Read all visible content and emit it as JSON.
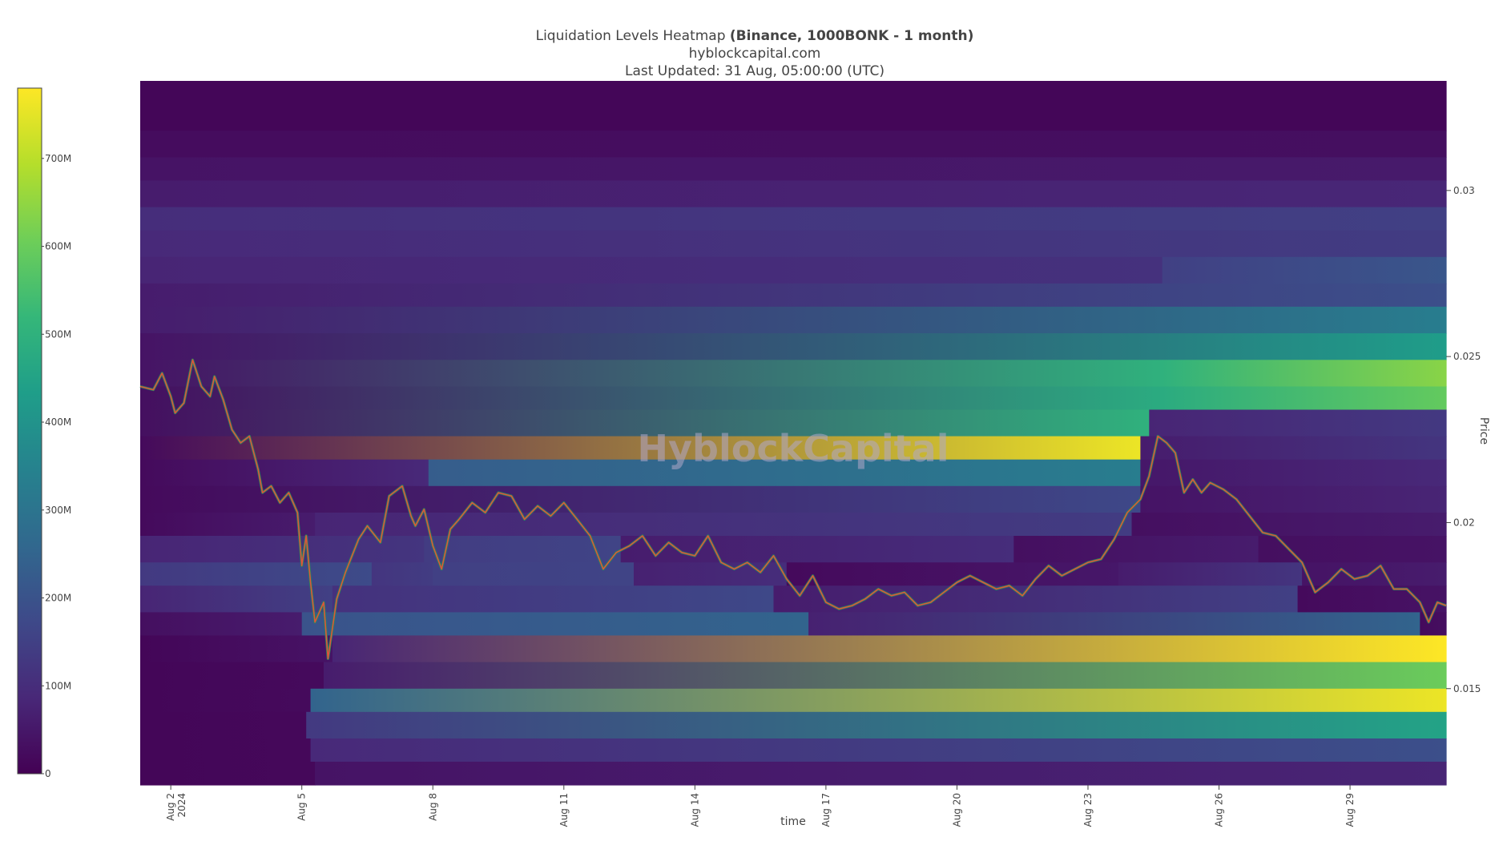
{
  "header": {
    "title_main": "Liquidation Levels Heatmap ",
    "title_bold": "(Binance, 1000BONK - 1 month)",
    "subtitle": "hyblockcapital.com",
    "updated": "Last Updated: 31 Aug, 05:00:00 (UTC)"
  },
  "watermark": "HyblockCapital",
  "colorscale": [
    "#440154",
    "#482878",
    "#3e4989",
    "#31688e",
    "#26828e",
    "#1f9e89",
    "#35b779",
    "#6ece58",
    "#b5de2b",
    "#fde725"
  ],
  "colorbar": {
    "ticks": [
      {
        "value": 0,
        "label": "0"
      },
      {
        "value": 100,
        "label": "100M"
      },
      {
        "value": 200,
        "label": "200M"
      },
      {
        "value": 300,
        "label": "300M"
      },
      {
        "value": 400,
        "label": "400M"
      },
      {
        "value": 500,
        "label": "500M"
      },
      {
        "value": 600,
        "label": "600M"
      },
      {
        "value": 700,
        "label": "700M"
      }
    ],
    "max": 780
  },
  "chart_data": {
    "type": "heatmap",
    "xlabel": "time",
    "ylabel": "Price",
    "x_range_days": [
      1.3,
      31.2
    ],
    "y_range": [
      0.0121,
      0.0333
    ],
    "x_ticks": [
      {
        "day": 2,
        "label": "Aug 2",
        "label2": "2024"
      },
      {
        "day": 5,
        "label": "Aug 5"
      },
      {
        "day": 8,
        "label": "Aug 8"
      },
      {
        "day": 11,
        "label": "Aug 11"
      },
      {
        "day": 14,
        "label": "Aug 14"
      },
      {
        "day": 17,
        "label": "Aug 17"
      },
      {
        "day": 20,
        "label": "Aug 20"
      },
      {
        "day": 23,
        "label": "Aug 23"
      },
      {
        "day": 26,
        "label": "Aug 26"
      },
      {
        "day": 29,
        "label": "Aug 29"
      }
    ],
    "y_ticks": [
      {
        "value": 0.015,
        "label": "0.015"
      },
      {
        "value": 0.02,
        "label": "0.02"
      },
      {
        "value": 0.025,
        "label": "0.025"
      },
      {
        "value": 0.03,
        "label": "0.03"
      }
    ],
    "liquidation_bands": [
      {
        "y0": 0.0318,
        "y1": 0.0333,
        "segments": [
          [
            1.3,
            31.2,
            10,
            10
          ]
        ]
      },
      {
        "y0": 0.031,
        "y1": 0.0318,
        "segments": [
          [
            1.3,
            31.2,
            25,
            30
          ]
        ]
      },
      {
        "y0": 0.0303,
        "y1": 0.031,
        "segments": [
          [
            1.3,
            31.2,
            40,
            55
          ]
        ]
      },
      {
        "y0": 0.0295,
        "y1": 0.0303,
        "segments": [
          [
            1.3,
            31.2,
            60,
            85
          ]
        ]
      },
      {
        "y0": 0.0288,
        "y1": 0.0295,
        "segments": [
          [
            1.3,
            31.2,
            100,
            150
          ]
        ]
      },
      {
        "y0": 0.028,
        "y1": 0.0288,
        "segments": [
          [
            1.3,
            31.2,
            90,
            140
          ]
        ]
      },
      {
        "y0": 0.0272,
        "y1": 0.028,
        "segments": [
          [
            1.3,
            24.7,
            80,
            110
          ],
          [
            24.7,
            31.2,
            150,
            210
          ]
        ]
      },
      {
        "y0": 0.0265,
        "y1": 0.0272,
        "segments": [
          [
            1.3,
            31.2,
            60,
            190
          ]
        ]
      },
      {
        "y0": 0.0257,
        "y1": 0.0265,
        "segments": [
          [
            1.3,
            31.2,
            60,
            330
          ]
        ]
      },
      {
        "y0": 0.0249,
        "y1": 0.0257,
        "segments": [
          [
            1.3,
            31.2,
            40,
            430
          ]
        ]
      },
      {
        "y0": 0.0241,
        "y1": 0.0249,
        "segments": [
          [
            1.3,
            24.7,
            40,
            500
          ],
          [
            24.7,
            31.2,
            500,
            640
          ]
        ]
      },
      {
        "y0": 0.0234,
        "y1": 0.0241,
        "segments": [
          [
            1.3,
            24.7,
            30,
            480
          ],
          [
            24.7,
            31.2,
            480,
            590
          ]
        ]
      },
      {
        "y0": 0.0226,
        "y1": 0.0234,
        "segments": [
          [
            1.3,
            24.4,
            30,
            500
          ],
          [
            24.4,
            31.2,
            80,
            130
          ]
        ]
      },
      {
        "y0": 0.0219,
        "y1": 0.0226,
        "segments": [
          [
            1.3,
            24.2,
            20,
            760
          ],
          [
            24.2,
            31.2,
            60,
            120
          ]
        ]
      },
      {
        "y0": 0.0211,
        "y1": 0.0219,
        "segments": [
          [
            1.3,
            7.9,
            20,
            90
          ],
          [
            7.9,
            24.2,
            230,
            330
          ],
          [
            24.2,
            31.2,
            50,
            90
          ]
        ]
      },
      {
        "y0": 0.0203,
        "y1": 0.0211,
        "segments": [
          [
            1.3,
            24.2,
            20,
            170
          ],
          [
            24.2,
            31.2,
            40,
            80
          ]
        ]
      },
      {
        "y0": 0.0196,
        "y1": 0.0203,
        "segments": [
          [
            1.3,
            5.3,
            20,
            60
          ],
          [
            5.3,
            24.0,
            80,
            140
          ],
          [
            24.0,
            31.2,
            30,
            60
          ]
        ]
      },
      {
        "y0": 0.0188,
        "y1": 0.0196,
        "segments": [
          [
            1.3,
            7.8,
            80,
            120
          ],
          [
            7.8,
            12.3,
            140,
            160
          ],
          [
            12.3,
            21.3,
            60,
            100
          ],
          [
            21.3,
            26.9,
            30,
            60
          ],
          [
            26.9,
            31.2,
            30,
            40
          ]
        ]
      },
      {
        "y0": 0.0181,
        "y1": 0.0188,
        "segments": [
          [
            1.3,
            6.6,
            130,
            180
          ],
          [
            6.6,
            8.0,
            120,
            140
          ],
          [
            8.0,
            12.6,
            150,
            160
          ],
          [
            12.6,
            16.1,
            70,
            100
          ],
          [
            16.1,
            23.7,
            20,
            50
          ],
          [
            23.7,
            27.9,
            60,
            120
          ],
          [
            27.9,
            31.2,
            40,
            60
          ]
        ]
      },
      {
        "y0": 0.0173,
        "y1": 0.0181,
        "segments": [
          [
            1.3,
            5.7,
            80,
            150
          ],
          [
            5.7,
            15.8,
            110,
            170
          ],
          [
            15.8,
            27.8,
            60,
            150
          ],
          [
            27.8,
            31.2,
            20,
            40
          ]
        ]
      },
      {
        "y0": 0.0166,
        "y1": 0.0173,
        "segments": [
          [
            1.3,
            5.0,
            30,
            60
          ],
          [
            5.0,
            16.6,
            200,
            250
          ],
          [
            16.6,
            30.6,
            70,
            250
          ],
          [
            30.6,
            31.2,
            20,
            30
          ]
        ]
      },
      {
        "y0": 0.0158,
        "y1": 0.0166,
        "segments": [
          [
            1.3,
            5.7,
            10,
            40
          ],
          [
            5.7,
            31.2,
            80,
            780
          ]
        ]
      },
      {
        "y0": 0.015,
        "y1": 0.0158,
        "segments": [
          [
            1.3,
            5.5,
            10,
            20
          ],
          [
            5.5,
            31.2,
            60,
            600
          ]
        ]
      },
      {
        "y0": 0.0143,
        "y1": 0.015,
        "segments": [
          [
            1.3,
            5.2,
            10,
            20
          ],
          [
            5.2,
            31.2,
            250,
            760
          ]
        ]
      },
      {
        "y0": 0.0135,
        "y1": 0.0143,
        "segments": [
          [
            1.3,
            5.1,
            10,
            15
          ],
          [
            5.1,
            31.2,
            130,
            450
          ]
        ]
      },
      {
        "y0": 0.0128,
        "y1": 0.0135,
        "segments": [
          [
            1.3,
            5.2,
            10,
            15
          ],
          [
            5.2,
            31.2,
            90,
            190
          ]
        ]
      },
      {
        "y0": 0.0121,
        "y1": 0.0128,
        "segments": [
          [
            1.3,
            5.3,
            10,
            15
          ],
          [
            5.3,
            31.2,
            40,
            80
          ]
        ]
      }
    ],
    "price_series": {
      "x_days": [
        1.3,
        1.6,
        1.8,
        2.0,
        2.1,
        2.3,
        2.5,
        2.7,
        2.9,
        3.0,
        3.2,
        3.4,
        3.6,
        3.8,
        4.0,
        4.1,
        4.3,
        4.5,
        4.7,
        4.9,
        5.0,
        5.1,
        5.2,
        5.3,
        5.5,
        5.6,
        5.8,
        6.0,
        6.3,
        6.5,
        6.8,
        7.0,
        7.3,
        7.5,
        7.6,
        7.8,
        8.0,
        8.2,
        8.4,
        8.6,
        8.9,
        9.2,
        9.5,
        9.8,
        10.1,
        10.4,
        10.7,
        11.0,
        11.3,
        11.6,
        11.9,
        12.2,
        12.5,
        12.8,
        13.1,
        13.4,
        13.7,
        14.0,
        14.3,
        14.6,
        14.9,
        15.2,
        15.5,
        15.8,
        16.1,
        16.4,
        16.7,
        17.0,
        17.3,
        17.6,
        17.9,
        18.2,
        18.5,
        18.8,
        19.1,
        19.4,
        19.7,
        20.0,
        20.3,
        20.6,
        20.9,
        21.2,
        21.5,
        21.8,
        22.1,
        22.4,
        22.7,
        23.0,
        23.3,
        23.6,
        23.9,
        24.2,
        24.4,
        24.6,
        24.8,
        25.0,
        25.2,
        25.4,
        25.6,
        25.8,
        26.1,
        26.4,
        26.7,
        27.0,
        27.3,
        27.6,
        27.9,
        28.2,
        28.5,
        28.8,
        29.1,
        29.4,
        29.7,
        30.0,
        30.3,
        30.6,
        30.8,
        31.0,
        31.2
      ],
      "price": [
        0.0241,
        0.024,
        0.0245,
        0.0238,
        0.0233,
        0.0236,
        0.0249,
        0.0241,
        0.0238,
        0.0244,
        0.0237,
        0.0228,
        0.0224,
        0.0226,
        0.0216,
        0.0209,
        0.0211,
        0.0206,
        0.0209,
        0.0203,
        0.0187,
        0.0196,
        0.0182,
        0.017,
        0.0176,
        0.0159,
        0.0177,
        0.0185,
        0.0195,
        0.0199,
        0.0194,
        0.0208,
        0.0211,
        0.0202,
        0.0199,
        0.0204,
        0.0193,
        0.0186,
        0.0198,
        0.0201,
        0.0206,
        0.0203,
        0.0209,
        0.0208,
        0.0201,
        0.0205,
        0.0202,
        0.0206,
        0.0201,
        0.0196,
        0.0186,
        0.0191,
        0.0193,
        0.0196,
        0.019,
        0.0194,
        0.0191,
        0.019,
        0.0196,
        0.0188,
        0.0186,
        0.0188,
        0.0185,
        0.019,
        0.0183,
        0.0178,
        0.0184,
        0.0176,
        0.0174,
        0.0175,
        0.0177,
        0.018,
        0.0178,
        0.0179,
        0.0175,
        0.0176,
        0.0179,
        0.0182,
        0.0184,
        0.0182,
        0.018,
        0.0181,
        0.0178,
        0.0183,
        0.0187,
        0.0184,
        0.0186,
        0.0188,
        0.0189,
        0.0195,
        0.0203,
        0.0207,
        0.0214,
        0.0226,
        0.0224,
        0.0221,
        0.0209,
        0.0213,
        0.0209,
        0.0212,
        0.021,
        0.0207,
        0.0202,
        0.0197,
        0.0196,
        0.0192,
        0.0188,
        0.0179,
        0.0182,
        0.0186,
        0.0183,
        0.0184,
        0.0187,
        0.018,
        0.018,
        0.0176,
        0.017,
        0.0176,
        0.0175
      ]
    }
  }
}
